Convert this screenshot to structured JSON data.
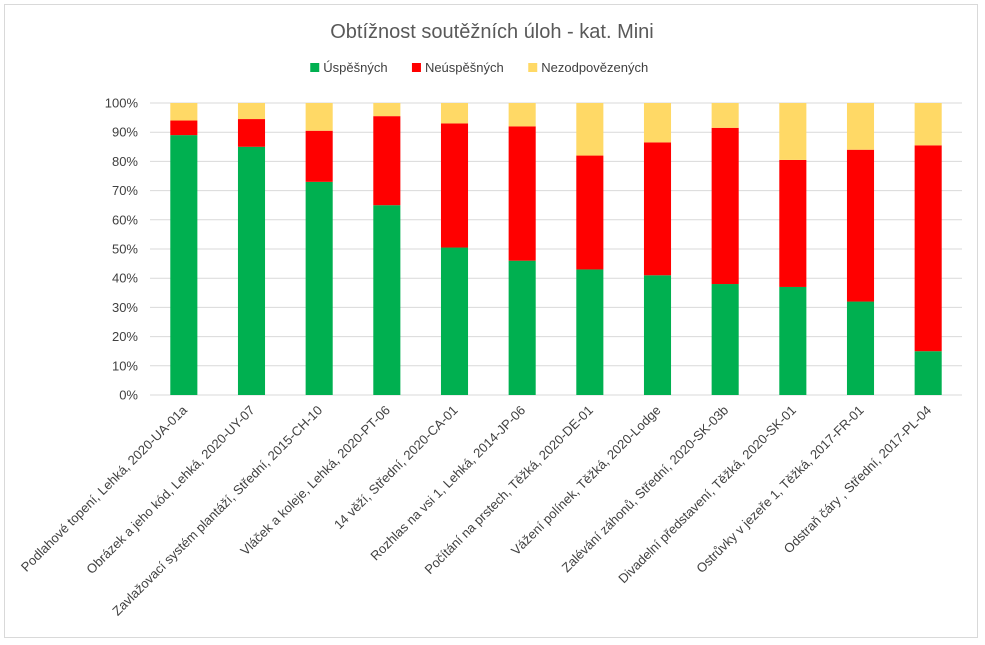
{
  "chart_data": {
    "type": "bar",
    "stacked": true,
    "title": "Obtížnost soutěžních úloh - kat. Mini",
    "xlabel": "",
    "ylabel": "",
    "ylim": [
      0,
      100
    ],
    "y_ticks": [
      "0%",
      "10%",
      "20%",
      "30%",
      "40%",
      "50%",
      "60%",
      "70%",
      "80%",
      "90%",
      "100%"
    ],
    "grid": true,
    "legend_position": "top",
    "categories": [
      "Podlahové topení, Lehká, 2020-UA-01a",
      "Obrázek a jeho kód, Lehká, 2020-UY-07",
      "Zavlažovací systém plantáží, Střední, 2015-CH-10",
      "Vláček a koleje, Lehká, 2020-PT-06",
      "14 věží, Střední, 2020-CA-01",
      "Rozhlas na vsi 1, Lehká, 2014-JP-06",
      "Počítání na prstech, Těžká, 2020-DE-01",
      "Vážení polínek, Těžká, 2020-Lodge",
      "Zalévání záhonů, Střední, 2020-SK-03b",
      "Divadelní představení, Těžká, 2020-SK-01",
      "Ostrůvky v jezeře 1, Těžká, 2017-FR-01",
      "Odstraň čáry , Střední, 2017-PL-04"
    ],
    "series": [
      {
        "name": "Úspěšných",
        "color": "#00b050",
        "values": [
          89,
          85,
          73,
          65,
          50.5,
          46,
          43,
          41,
          38,
          37,
          32,
          15
        ]
      },
      {
        "name": "Neúspěšných",
        "color": "#ff0000",
        "values": [
          5,
          9.5,
          17.5,
          30.5,
          42.5,
          46,
          39,
          45.5,
          53.5,
          43.5,
          52,
          70.5
        ]
      },
      {
        "name": "Nezodpovězených",
        "color": "#ffd966",
        "values": [
          6,
          5.5,
          9.5,
          4.5,
          7,
          8,
          18,
          13.5,
          8.5,
          19.5,
          16,
          14.5
        ]
      }
    ]
  }
}
